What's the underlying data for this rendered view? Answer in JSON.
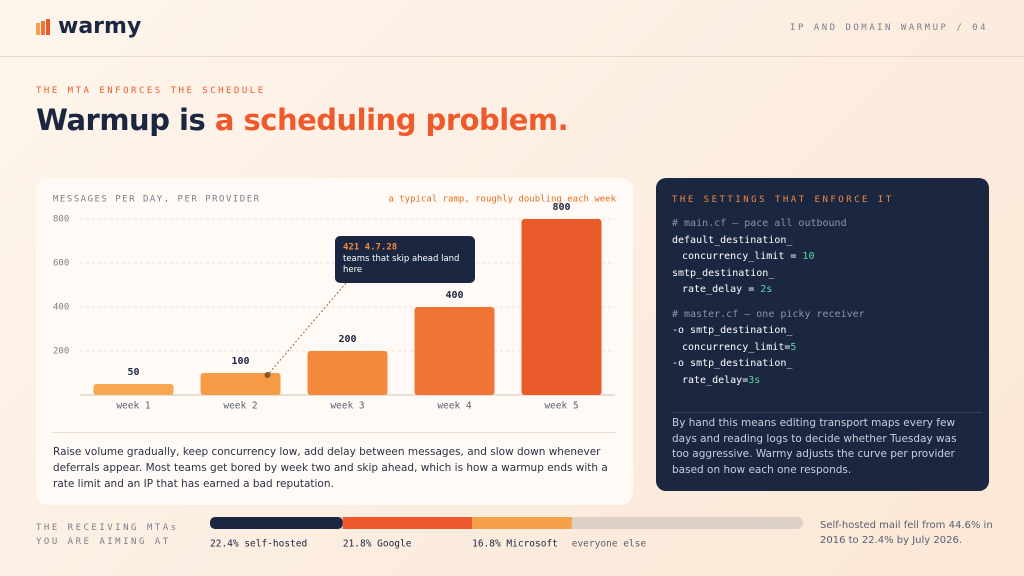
{
  "header": {
    "logo": "warmy",
    "section": "IP AND DOMAIN WARMUP / 04"
  },
  "kicker": "THE MTA ENFORCES THE SCHEDULE",
  "title": {
    "plain": "Warmup is ",
    "accent": "a scheduling problem."
  },
  "chart_data": [
    {
      "type": "bar",
      "title": "MESSAGES PER DAY, PER PROVIDER",
      "subtitle": "a typical ramp, roughly doubling each week",
      "categories": [
        "week 1",
        "week 2",
        "week 3",
        "week 4",
        "week 5"
      ],
      "values": [
        50,
        100,
        200,
        400,
        800
      ],
      "colors": [
        "#f7a84f",
        "#f69a45",
        "#f5893b",
        "#f07434",
        "#e85a2a"
      ],
      "ylim": [
        0,
        800
      ],
      "yticks": [
        200,
        400,
        600,
        800
      ],
      "grid": true,
      "annotation": {
        "title": "421 4.7.28",
        "text": "teams that skip ahead land here",
        "category": 1
      }
    },
    {
      "type": "share-bar",
      "title": "THE RECEIVING MTAs YOU ARE AIMING AT",
      "values": [
        22.4,
        21.8,
        16.8
      ],
      "value_labels": [
        "22.4% self-hosted",
        "21.8% Google",
        "16.8% Microsoft"
      ],
      "colors": [
        "#1b2640",
        "#ef5a2c",
        "#f6a04a"
      ],
      "rest_label": "everyone else",
      "rest_color": "#ddd0c4",
      "xlim": [
        0,
        100
      ],
      "note": "Self-hosted mail fell from 44.6% in 2016 to 22.4% by July 2026."
    }
  ],
  "chart_caption": "Raise volume gradually, keep concurrency low, add delay between messages, and slow down whenever deferrals appear. Most teams get bored by week two and skip ahead, which is how a warmup ends with a rate limit and an IP that has earned a bad reputation.",
  "panel": {
    "title": "THE SETTINGS THAT ENFORCE IT",
    "lines": [
      {
        "comment": "# main.cf — pace all outbound"
      },
      {
        "text": "default_destination_"
      },
      {
        "text": "concurrency_limit = ",
        "value": "10",
        "indent": true
      },
      {
        "text": "smtp_destination_"
      },
      {
        "text": "rate_delay = ",
        "value": "2s",
        "indent": true
      },
      {
        "comment": "# master.cf — one picky receiver"
      },
      {
        "text": "-o smtp_destination_"
      },
      {
        "text": "concurrency_limit=",
        "value": "5",
        "indent": true
      },
      {
        "text": "-o smtp_destination_"
      },
      {
        "text": "rate_delay=",
        "value": "3s",
        "indent": true
      }
    ],
    "footer": "By hand this means editing transport maps every few days and reading logs to decide whether Tuesday was too aggressive. Warmy adjusts the curve per provider based on how each one responds."
  }
}
